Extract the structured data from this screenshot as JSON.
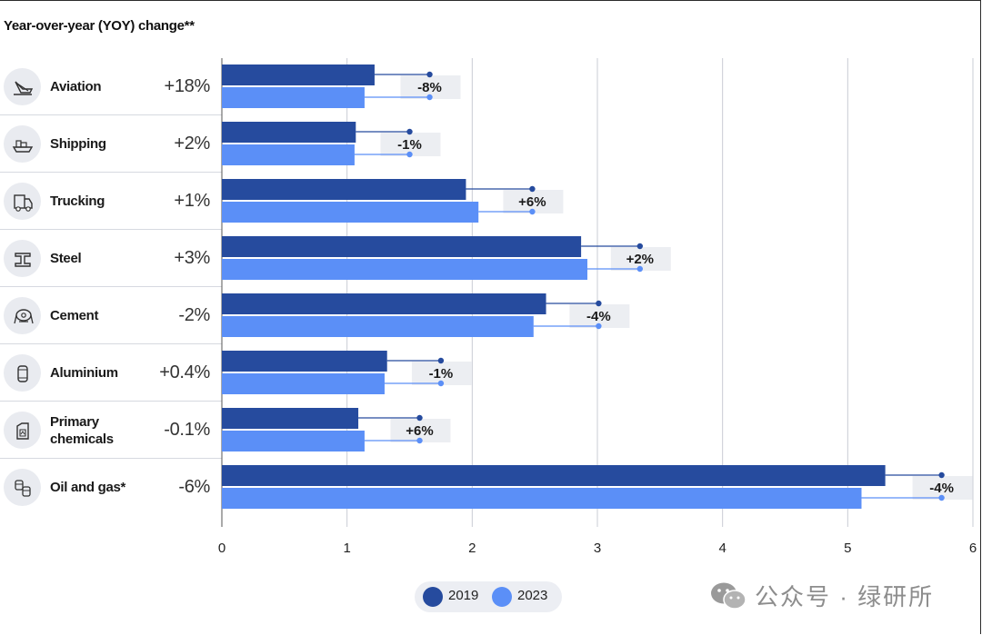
{
  "header": {
    "title": "Year-over-year (YOY) change**"
  },
  "sectors": [
    {
      "label": "Aviation",
      "change": "+18%",
      "icon": "airplane-icon"
    },
    {
      "label": "Shipping",
      "change": "+2%",
      "icon": "ship-icon"
    },
    {
      "label": "Trucking",
      "change": "+1%",
      "icon": "truck-icon"
    },
    {
      "label": "Steel",
      "change": "+3%",
      "icon": "steel-beam-icon"
    },
    {
      "label": "Cement",
      "change": "-2%",
      "icon": "cement-mixer-icon"
    },
    {
      "label": "Aluminium",
      "change": "+0.4%",
      "icon": "aluminium-can-icon"
    },
    {
      "label": "Primary chemicals",
      "change": "-0.1%",
      "icon": "chemical-container-icon"
    },
    {
      "label": "Oil and gas*",
      "change": "-6%",
      "icon": "oil-barrels-icon"
    }
  ],
  "chart_data": {
    "type": "bar",
    "orientation": "horizontal",
    "categories": [
      "Aviation",
      "Shipping",
      "Trucking",
      "Steel",
      "Cement",
      "Aluminium",
      "Primary chemicals",
      "Oil and gas*"
    ],
    "series": [
      {
        "name": "2019",
        "color": "#264b9e",
        "values": [
          1.22,
          1.07,
          1.95,
          2.87,
          2.59,
          1.32,
          1.09,
          5.3
        ]
      },
      {
        "name": "2023",
        "color": "#5b8ff7",
        "values": [
          1.14,
          1.06,
          2.05,
          2.92,
          2.49,
          1.3,
          1.14,
          5.11
        ]
      }
    ],
    "markers": [
      1.66,
      1.5,
      2.48,
      3.34,
      3.01,
      1.75,
      1.58,
      5.75
    ],
    "annotations": [
      "-8%",
      "-1%",
      "+6%",
      "+2%",
      "-4%",
      "-1%",
      "+6%",
      "-4%"
    ],
    "x_ticks": [
      "0",
      "1",
      "2",
      "3",
      "4",
      "5",
      "6"
    ],
    "xlim": [
      0,
      6
    ],
    "grid": true,
    "legend_position": "bottom-center"
  },
  "legend": {
    "items": [
      "2019",
      "2023"
    ]
  },
  "watermark": {
    "text": "公众号 · 绿研所",
    "icon": "wechat-icon"
  }
}
